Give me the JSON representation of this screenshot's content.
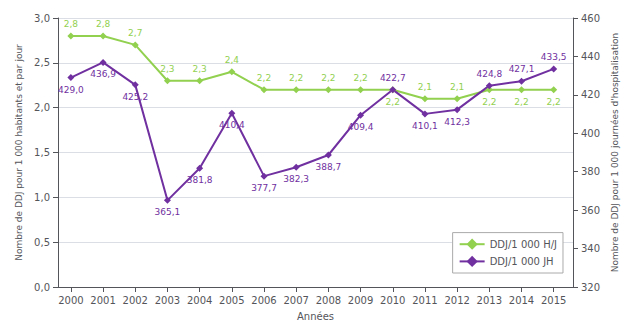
{
  "chart_data": {
    "type": "line",
    "xlabel": "Années",
    "ylabel": "Nombre de DDJ pour 1 000 habitants et par jour",
    "y2label": "Nombre de DDJ pour 1 000 journées d'hospitalisation",
    "x": [
      2000,
      2001,
      2002,
      2003,
      2004,
      2005,
      2006,
      2007,
      2008,
      2009,
      2010,
      2011,
      2012,
      2013,
      2014,
      2015
    ],
    "xlim": [
      1999.6,
      2015.6
    ],
    "xticks": [
      2000,
      2001,
      2002,
      2003,
      2004,
      2005,
      2006,
      2007,
      2008,
      2009,
      2010,
      2011,
      2012,
      2013,
      2014,
      2015
    ],
    "ylim": [
      0.0,
      3.0
    ],
    "yticks": [
      {
        "value": 0.0,
        "label": "0,0"
      },
      {
        "value": 0.5,
        "label": "0,5"
      },
      {
        "value": 1.0,
        "label": "1,0"
      },
      {
        "value": 1.5,
        "label": "1,5"
      },
      {
        "value": 2.0,
        "label": "2,0"
      },
      {
        "value": 2.5,
        "label": "2,5"
      },
      {
        "value": 3.0,
        "label": "3,0"
      }
    ],
    "y2lim": [
      320,
      460
    ],
    "y2ticks": [
      320,
      340,
      360,
      380,
      400,
      420,
      440,
      460
    ],
    "grid": true,
    "legend": "lower right",
    "data_labels": true,
    "series": [
      {
        "name": "DDJ/1 000 H/J",
        "color": "#92d050",
        "marker": "diamond",
        "values": [
          2.8,
          2.8,
          2.7,
          2.3,
          2.3,
          2.4,
          2.2,
          2.2,
          2.2,
          2.2,
          2.2,
          2.1,
          2.1,
          2.2,
          2.2,
          2.2
        ],
        "value_labels": [
          "2,8",
          "2,8",
          "2,7",
          "2,3",
          "2,3",
          "2,4",
          "2,2",
          "2,2",
          "2,2",
          "2,2",
          "2,2",
          "2,1",
          "2,1",
          "2,2",
          "2,2",
          "2,2"
        ]
      },
      {
        "name": "DDJ/1 000 JH",
        "color": "#7030a0",
        "marker": "diamond",
        "axis": "y2",
        "values": [
          429.0,
          436.9,
          425.2,
          365.1,
          381.8,
          410.4,
          377.7,
          382.3,
          388.7,
          409.4,
          422.7,
          410.1,
          412.3,
          424.8,
          427.1,
          433.5
        ],
        "value_labels": [
          "429,0",
          "436,9",
          "425,2",
          "365,1",
          "381,8",
          "410,4",
          "377,7",
          "382,3",
          "388,7",
          "409,4",
          "422,7",
          "410,1",
          "412,3",
          "424,8",
          "427,1",
          "433,5"
        ]
      }
    ]
  }
}
